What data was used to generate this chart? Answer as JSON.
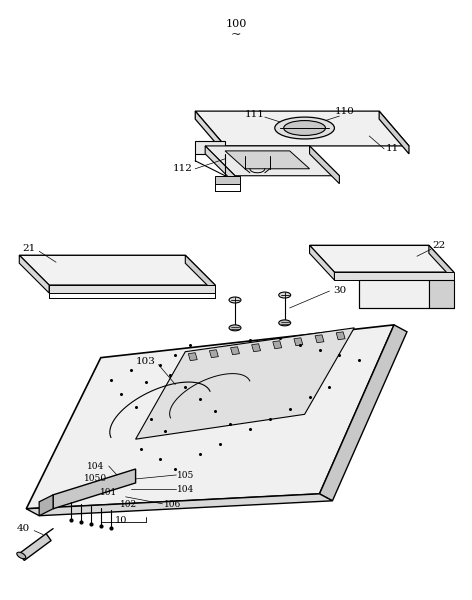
{
  "bg_color": "#ffffff",
  "lc": "#000000",
  "fc_light": "#f5f5f5",
  "fc_mid": "#e0e0e0",
  "fc_dark": "#c8c8c8",
  "fc_darker": "#aaaaaa"
}
